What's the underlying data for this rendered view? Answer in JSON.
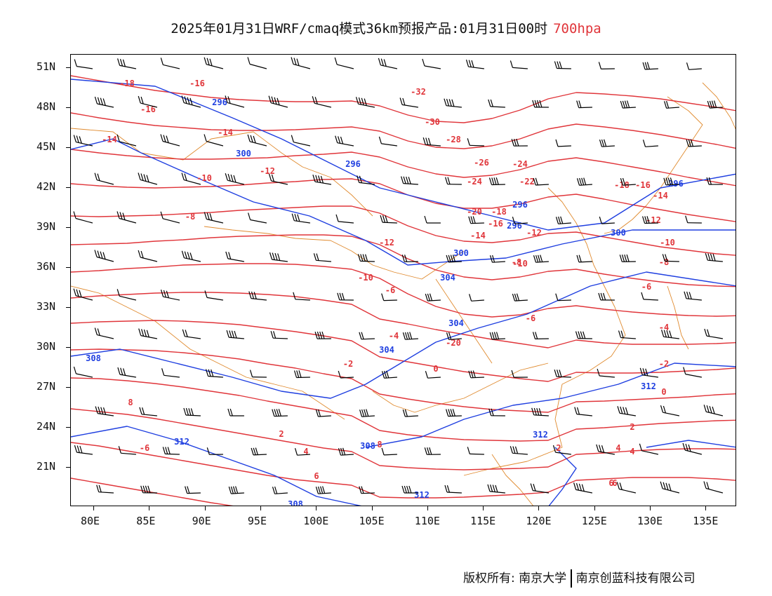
{
  "title": {
    "main": "2025年01月31日WRF/cmaq模式36km预报产品:01月31日00时",
    "level": "700hpa"
  },
  "axes": {
    "lat_labels": [
      "51N",
      "48N",
      "45N",
      "42N",
      "39N",
      "36N",
      "33N",
      "30N",
      "27N",
      "24N",
      "21N"
    ],
    "lon_labels": [
      "80E",
      "85E",
      "90E",
      "95E",
      "100E",
      "105E",
      "110E",
      "115E",
      "120E",
      "125E",
      "130E",
      "135E"
    ]
  },
  "colors": {
    "temperature": "#e0353a",
    "geopotential": "#1f3fe0",
    "boundary": "#e08a2e",
    "wind": "#000000"
  },
  "temperature_labels": [
    "-18",
    "-16",
    "-16",
    "-14",
    "-14",
    "-12",
    "-10",
    "-8",
    "-32",
    "-30",
    "-28",
    "-26",
    "-24",
    "-24",
    "-22",
    "-20",
    "-18",
    "-16",
    "-14",
    "-12",
    "-12",
    "-10",
    "-10",
    "-8",
    "-6",
    "-6",
    "-4",
    "-2",
    "0",
    "2",
    "4",
    "6",
    "8",
    "-20",
    "-18",
    "-16",
    "-14",
    "-12",
    "-10",
    "-8",
    "-6",
    "-4",
    "-2",
    "0",
    "2",
    "4",
    "6",
    "2",
    "4",
    "6",
    "8",
    "-6",
    "2",
    "4"
  ],
  "geopotential_labels": [
    "296",
    "300",
    "296",
    "296",
    "296",
    "300",
    "304",
    "304",
    "304",
    "308",
    "308",
    "312",
    "312",
    "312",
    "308",
    "300",
    "312",
    "296"
  ],
  "footer": {
    "copyright": "版权所有: 南京大学",
    "company": "南京创蓝科技有限公司"
  }
}
